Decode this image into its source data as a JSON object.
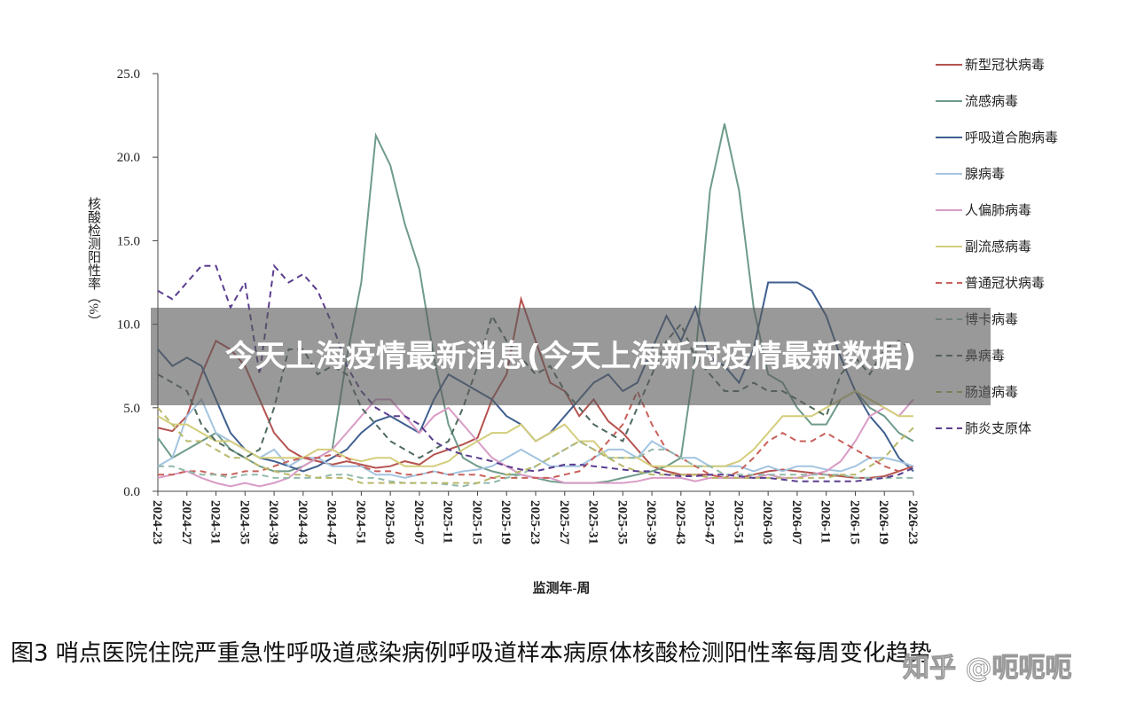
{
  "chart_data": {
    "type": "line",
    "x_label": "监测年-周",
    "y_label": "核酸检测阳性率（%）",
    "caption": "图3 哨点医院住院严重急性呼吸道感染病例呼吸道样本病原体核酸检测阳性率每周变化趋势",
    "overlay_title": "今天上海疫情最新消息(今天上海新冠疫情最新数据)",
    "watermark": "知乎 @呃呃呃",
    "ylim": [
      0,
      25
    ],
    "yticks": [
      {
        "value": 0,
        "label": "0.0"
      },
      {
        "value": 5,
        "label": "5.0"
      },
      {
        "value": 10,
        "label": "10.0"
      },
      {
        "value": 15,
        "label": "15.0"
      },
      {
        "value": 20,
        "label": "20.0"
      },
      {
        "value": 25,
        "label": "25.0"
      }
    ],
    "categories": [
      "2024-23",
      null,
      "2024-27",
      null,
      "2024-31",
      null,
      "2024-35",
      null,
      "2024-39",
      null,
      "2024-43",
      null,
      "2024-47",
      null,
      "2024-51",
      null,
      "2025-03",
      null,
      "2025-07",
      null,
      "2025-11",
      null,
      "2025-15",
      null,
      "2025-19",
      null,
      "2025-23",
      null,
      "2025-27",
      null,
      "2025-31",
      null,
      "2025-35",
      null,
      "2025-39",
      null,
      "2025-43",
      null,
      "2025-47",
      null,
      "2025-51",
      null,
      "2026-03",
      null,
      "2026-07",
      null,
      "2026-11",
      null,
      "2026-15",
      null,
      "2026-19",
      null,
      "2026-23"
    ],
    "series": [
      {
        "name": "新型冠状病毒",
        "color": "#b5524f",
        "dash": false,
        "values": [
          3.8,
          3.6,
          4.5,
          7,
          9,
          8.5,
          7.5,
          5.5,
          3.5,
          2.5,
          2,
          1.8,
          1.6,
          1.8,
          1.6,
          1.4,
          1.5,
          1.8,
          1.6,
          2.2,
          2.5,
          2.8,
          3.2,
          5.5,
          7,
          11.5,
          9,
          6.5,
          6,
          4.5,
          5.5,
          4.2,
          3.5,
          2.5,
          1.5,
          1.2,
          1,
          1,
          1,
          0.8,
          0.8,
          1,
          1.2,
          1.3,
          1.2,
          1.1,
          1,
          0.9,
          0.8,
          0.8,
          0.9,
          1.2,
          1.5
        ]
      },
      {
        "name": "流感病毒",
        "color": "#6f9b89",
        "dash": false,
        "values": [
          3.2,
          2,
          2.5,
          3,
          3.5,
          2.5,
          2,
          1.5,
          1.2,
          1.2,
          1.5,
          2,
          2.5,
          8,
          12.5,
          21.3,
          19.5,
          16,
          13.3,
          8,
          4,
          2,
          1.5,
          1.2,
          1,
          1,
          0.8,
          0.6,
          0.5,
          0.5,
          0.5,
          0.6,
          0.8,
          1,
          1.2,
          1.5,
          2,
          8,
          18,
          22,
          18,
          11,
          7,
          6.5,
          5,
          4,
          4,
          5.5,
          6,
          5,
          4.5,
          3.5,
          3
        ]
      },
      {
        "name": "呼吸道合胞病毒",
        "color": "#3f5f8f",
        "dash": false,
        "values": [
          8.5,
          7.5,
          8,
          7.5,
          5.5,
          3.5,
          2.5,
          2,
          1.8,
          1.5,
          1.2,
          1.5,
          2,
          2.5,
          3.5,
          4.2,
          4.5,
          4,
          3.5,
          5.5,
          7,
          6.5,
          6,
          5.5,
          4.5,
          4,
          3,
          3.5,
          4.5,
          5.5,
          6.5,
          7,
          6,
          6.5,
          8.5,
          10.5,
          9,
          11,
          8,
          7.5,
          6.5,
          8.5,
          12.5,
          12.5,
          12.5,
          12,
          10.5,
          8,
          6,
          4.5,
          3.5,
          2,
          1.2
        ]
      },
      {
        "name": "腺病毒",
        "color": "#a3c4e0",
        "dash": false,
        "values": [
          1.5,
          2,
          4.5,
          5.5,
          3.5,
          3,
          2.5,
          2,
          2.5,
          1.5,
          2,
          2,
          1.5,
          1.5,
          1.5,
          1,
          1,
          0.8,
          1,
          1.2,
          1,
          1.2,
          1.3,
          1.5,
          2,
          2.5,
          2,
          1.5,
          1.5,
          1.5,
          2,
          2.5,
          2.5,
          2,
          3,
          2.5,
          2,
          2,
          1.5,
          1.5,
          1.5,
          1.2,
          1.5,
          1.2,
          1.5,
          1.5,
          1.3,
          1.2,
          1.5,
          2,
          2,
          1.8,
          1.5
        ]
      },
      {
        "name": "人偏肺病毒",
        "color": "#d99cc6",
        "dash": false,
        "values": [
          0.8,
          1,
          1.2,
          0.8,
          0.5,
          0.3,
          0.5,
          0.3,
          0.5,
          0.8,
          1.5,
          2,
          2.5,
          3.5,
          4.5,
          5.5,
          5.5,
          4.5,
          3.5,
          4.5,
          5,
          4,
          3,
          2,
          1.5,
          1,
          0.8,
          0.8,
          0.5,
          0.5,
          0.5,
          0.5,
          0.5,
          0.6,
          0.8,
          0.8,
          0.8,
          0.6,
          0.8,
          0.8,
          0.8,
          0.8,
          1,
          0.8,
          0.8,
          1,
          1.2,
          1.8,
          3,
          4.5,
          5,
          4.5,
          5.5
        ]
      },
      {
        "name": "副流感病毒",
        "color": "#d4cd7c",
        "dash": false,
        "values": [
          4.5,
          4,
          4,
          3.5,
          3,
          3,
          2.5,
          2,
          2,
          2,
          2,
          2.5,
          2.5,
          2,
          1.8,
          2,
          2,
          1.5,
          1.5,
          1.5,
          1.8,
          2.5,
          3,
          3.5,
          3.5,
          4,
          3,
          3.5,
          4,
          3,
          3,
          2,
          2,
          2,
          1.5,
          1.5,
          1.5,
          1.5,
          1.5,
          1.5,
          1.8,
          2.5,
          3.5,
          4.5,
          4.5,
          4.5,
          5,
          5.5,
          6,
          5.5,
          5,
          4.5,
          4.5
        ]
      },
      {
        "name": "普通冠状病毒",
        "color": "#c8605a",
        "dash": true,
        "values": [
          1,
          1,
          1.2,
          1.2,
          1,
          1,
          1.2,
          1.2,
          1.5,
          1.8,
          2,
          2,
          2.2,
          2,
          1.5,
          1.2,
          1.2,
          1,
          1,
          1.2,
          1,
          1,
          1,
          0.8,
          0.8,
          0.8,
          0.8,
          0.8,
          1,
          1.2,
          2,
          3,
          4,
          6,
          4,
          2.5,
          2,
          1.5,
          1,
          0.8,
          1.2,
          2,
          3,
          3.5,
          3,
          3,
          3.5,
          3,
          2.5,
          2,
          1.5,
          1.2,
          1.5
        ]
      },
      {
        "name": "博卡病毒",
        "color": "#92b9aa",
        "dash": true,
        "values": [
          1.5,
          1.5,
          1.2,
          1,
          1,
          0.8,
          1,
          1,
          0.8,
          0.8,
          0.8,
          0.8,
          1,
          1,
          0.8,
          0.8,
          0.6,
          0.5,
          0.5,
          0.5,
          0.4,
          0.3,
          0.5,
          0.5,
          0.8,
          1,
          1.5,
          2,
          2.5,
          3,
          2.5,
          2,
          2,
          2,
          2.5,
          2.5,
          2,
          1.5,
          1.5,
          1,
          1,
          1,
          1,
          1,
          1,
          1,
          1,
          1,
          0.8,
          0.8,
          0.8,
          0.8,
          0.8
        ]
      },
      {
        "name": "鼻病毒",
        "color": "#4f6b5f",
        "dash": true,
        "values": [
          7,
          6.5,
          6,
          4,
          3,
          2.5,
          2,
          2.5,
          5,
          8.5,
          8.5,
          7,
          7.5,
          7,
          5,
          4,
          3,
          2.5,
          2,
          2.5,
          3,
          5,
          7.5,
          10.5,
          9,
          8,
          7,
          7.5,
          6,
          5,
          4,
          3.5,
          3,
          5,
          7,
          9,
          10,
          8,
          7,
          6,
          6,
          6.5,
          6,
          6,
          5.5,
          5,
          4.5,
          7,
          8,
          7,
          8.5,
          9,
          8.5
        ]
      },
      {
        "name": "肠道病毒",
        "color": "#b9b86a",
        "dash": true,
        "values": [
          5,
          4,
          3,
          3,
          2.5,
          2,
          2,
          1.5,
          1.2,
          1,
          1,
          0.8,
          0.8,
          0.8,
          0.5,
          0.5,
          0.5,
          0.5,
          0.5,
          0.5,
          0.5,
          0.5,
          0.5,
          0.8,
          1,
          1.2,
          1.5,
          2,
          2.5,
          3,
          2.5,
          2,
          1.5,
          1.2,
          1,
          1,
          1,
          1,
          0.8,
          0.8,
          0.8,
          0.8,
          0.8,
          0.8,
          0.8,
          0.8,
          0.8,
          1,
          1,
          1.5,
          2,
          3,
          3.8
        ]
      },
      {
        "name": "肺炎支原体",
        "color": "#5b3e8f",
        "dash": true,
        "values": [
          12,
          11.5,
          12.5,
          13.5,
          13.5,
          11,
          12.5,
          7,
          13.5,
          12.5,
          13,
          12,
          10,
          7.5,
          6,
          5,
          4.5,
          4.5,
          4,
          3,
          2.5,
          2.2,
          2,
          1.8,
          1.5,
          1.3,
          1.2,
          1.4,
          1.6,
          1.6,
          1.5,
          1.4,
          1.3,
          1.2,
          1.2,
          1,
          0.9,
          0.9,
          1,
          1,
          0.9,
          0.8,
          0.8,
          0.7,
          0.6,
          0.6,
          0.6,
          0.6,
          0.6,
          0.7,
          0.8,
          1,
          1.4
        ]
      }
    ]
  }
}
